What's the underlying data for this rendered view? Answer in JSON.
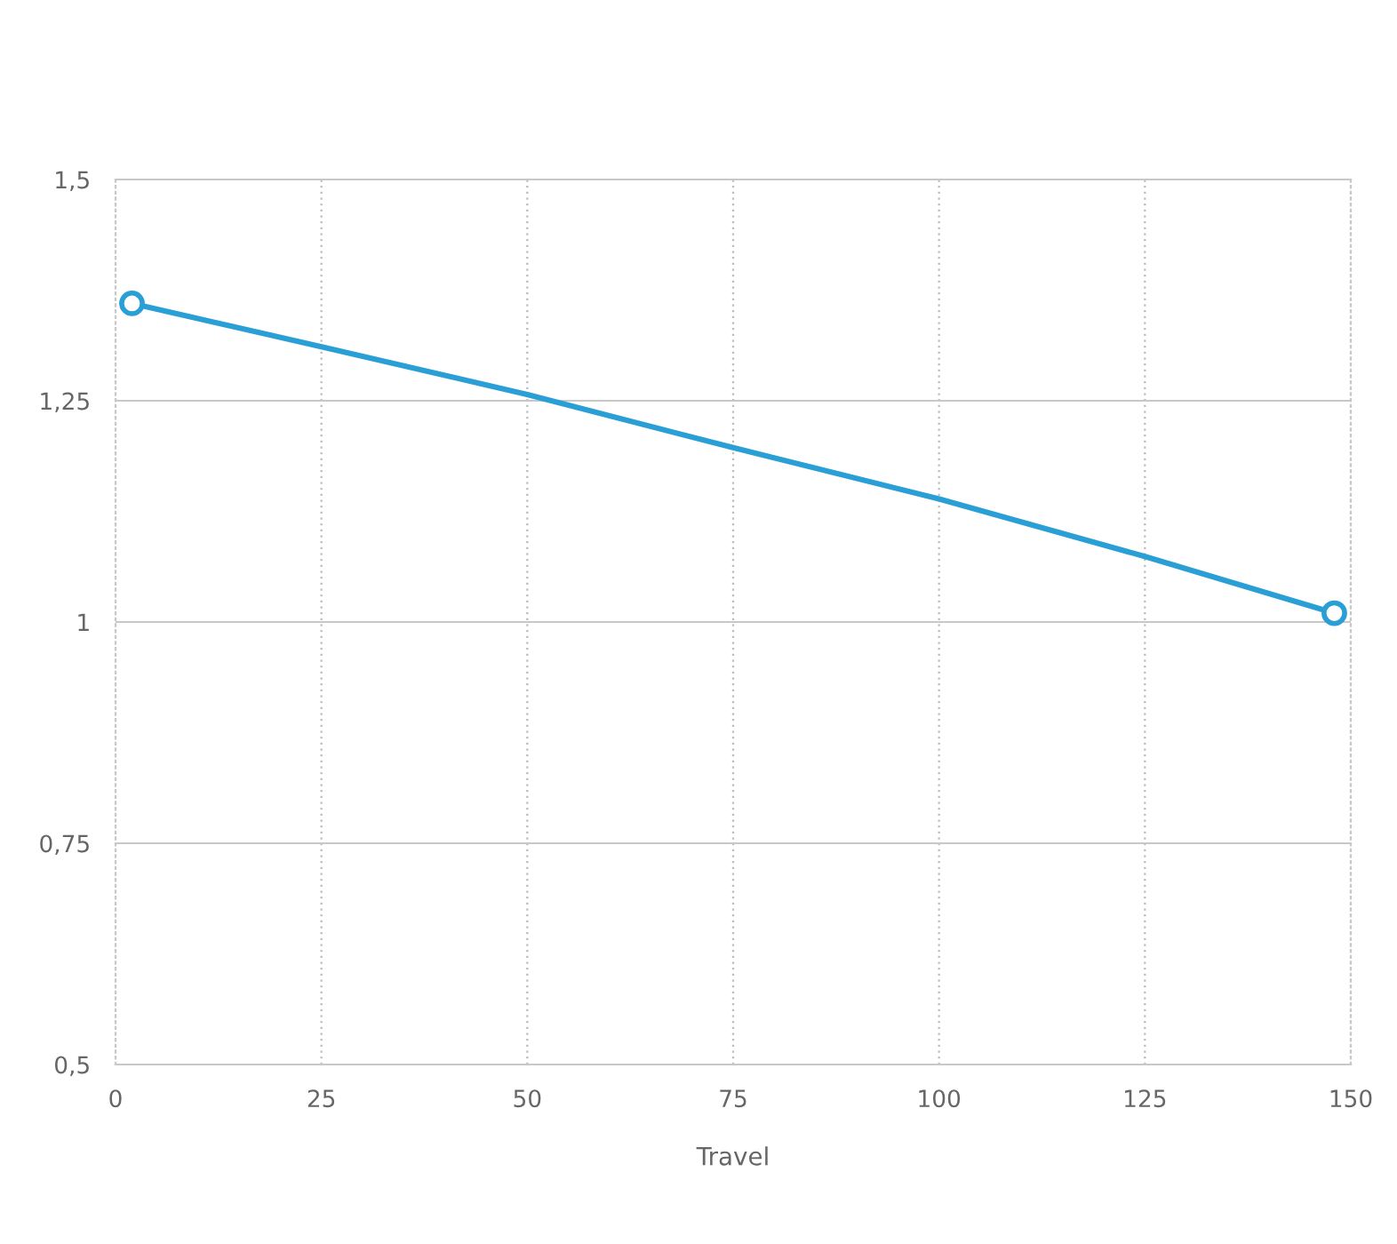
{
  "chart_data": {
    "type": "line",
    "xlabel": "Travel",
    "series": [
      {
        "color": "#2a9fd6",
        "marker": "none",
        "x": [
          2,
          25,
          50,
          75,
          100,
          125,
          148
        ],
        "values": [
          1.36,
          1.311,
          1.257,
          1.197,
          1.139,
          1.074,
          1.01
        ]
      },
      {
        "type": "scatter",
        "color": "#2a9fd6",
        "marker": "circle",
        "x": [
          2,
          148
        ],
        "values": [
          1.36,
          1.01
        ]
      }
    ],
    "xlim": [
      0,
      150
    ],
    "xticks": [
      0,
      25,
      50,
      75,
      100,
      125,
      150
    ],
    "ylim": [
      0.5,
      1.5
    ],
    "yticks": [
      {
        "value": 0.5,
        "label": "0,5"
      },
      {
        "value": 0.75,
        "label": "0,75"
      },
      {
        "value": 1,
        "label": "1"
      },
      {
        "value": 1.25,
        "label": "1,25"
      },
      {
        "value": 1.5,
        "label": "1,5"
      }
    ],
    "grid": true,
    "legend": false
  }
}
